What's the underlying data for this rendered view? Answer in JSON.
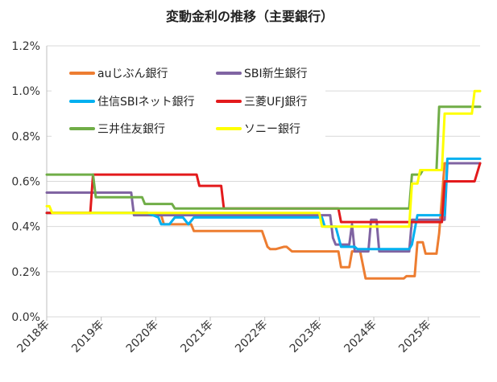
{
  "chart_data": {
    "type": "line",
    "title": "変動金利の推移（主要銀行）",
    "xlabel": "",
    "ylabel": "",
    "x_ticks": [
      "2018年",
      "2019年",
      "2020年",
      "2021年",
      "2022年",
      "2023年",
      "2024年",
      "2025年"
    ],
    "xlim": [
      2018.0,
      2025.95
    ],
    "ylim": [
      0.0,
      1.2
    ],
    "y_ticks": [
      "0.0%",
      "0.2%",
      "0.4%",
      "0.6%",
      "0.8%",
      "1.0%",
      "1.2%"
    ],
    "y_tick_values": [
      0.0,
      0.2,
      0.4,
      0.6,
      0.8,
      1.0,
      1.2
    ],
    "grid": "horizontal",
    "legend_placement": "top-left",
    "series": [
      {
        "name": "auじぶん銀行",
        "color": "#ED7D31",
        "x": [
          2018.0,
          2019.85,
          2019.9,
          2020.1,
          2020.15,
          2020.3,
          2020.6,
          2020.65,
          2020.7,
          2021.95,
          2022.05,
          2022.1,
          2022.2,
          2022.35,
          2022.4,
          2022.5,
          2022.6,
          2022.65,
          2023.35,
          2023.4,
          2023.55,
          2023.6,
          2023.7,
          2023.75,
          2023.85,
          2023.9,
          2024.55,
          2024.6,
          2024.75,
          2024.8,
          2024.9,
          2024.95,
          2025.15,
          2025.2,
          2025.3,
          2025.95
        ],
        "values": [
          0.46,
          0.46,
          0.45,
          0.45,
          0.41,
          0.41,
          0.41,
          0.41,
          0.38,
          0.38,
          0.31,
          0.3,
          0.3,
          0.31,
          0.31,
          0.29,
          0.29,
          0.29,
          0.29,
          0.22,
          0.22,
          0.29,
          0.29,
          0.29,
          0.17,
          0.17,
          0.17,
          0.18,
          0.18,
          0.33,
          0.33,
          0.28,
          0.28,
          0.37,
          0.68,
          0.68
        ]
      },
      {
        "name": "SBI新生銀行",
        "color": "#8064A2",
        "x": [
          2018.0,
          2019.55,
          2019.6,
          2021.05,
          2021.1,
          2023.2,
          2023.25,
          2023.3,
          2023.55,
          2023.6,
          2023.65,
          2023.9,
          2023.95,
          2024.05,
          2024.1,
          2024.65,
          2024.7,
          2024.8,
          2024.85,
          2025.3,
          2025.35,
          2025.95
        ],
        "values": [
          0.55,
          0.55,
          0.45,
          0.45,
          0.45,
          0.45,
          0.35,
          0.32,
          0.32,
          0.41,
          0.29,
          0.29,
          0.43,
          0.43,
          0.29,
          0.29,
          0.43,
          0.43,
          0.43,
          0.43,
          0.68,
          0.68
        ]
      },
      {
        "name": "住信SBIネット銀行",
        "color": "#00B0F0",
        "x": [
          2018.0,
          2019.85,
          2020.05,
          2020.1,
          2020.25,
          2020.35,
          2020.5,
          2020.6,
          2020.7,
          2023.05,
          2023.1,
          2023.3,
          2023.4,
          2023.65,
          2023.7,
          2024.65,
          2024.7,
          2024.8,
          2024.95,
          2025.0,
          2025.3,
          2025.35,
          2025.95
        ],
        "values": [
          0.46,
          0.46,
          0.44,
          0.41,
          0.41,
          0.44,
          0.44,
          0.41,
          0.44,
          0.44,
          0.4,
          0.4,
          0.31,
          0.31,
          0.3,
          0.3,
          0.32,
          0.45,
          0.45,
          0.45,
          0.45,
          0.7,
          0.7
        ]
      },
      {
        "name": "三菱UFJ銀行",
        "color": "#E31A1C",
        "x": [
          2018.0,
          2018.8,
          2018.85,
          2020.75,
          2020.8,
          2021.2,
          2021.25,
          2023.35,
          2023.4,
          2024.95,
          2025.0,
          2025.25,
          2025.3,
          2025.85,
          2025.95
        ],
        "values": [
          0.46,
          0.46,
          0.63,
          0.63,
          0.58,
          0.58,
          0.48,
          0.48,
          0.42,
          0.42,
          0.42,
          0.42,
          0.6,
          0.6,
          0.68
        ]
      },
      {
        "name": "三井住友銀行",
        "color": "#70AD47",
        "x": [
          2018.0,
          2018.85,
          2018.9,
          2019.55,
          2019.6,
          2019.75,
          2019.8,
          2020.3,
          2020.35,
          2024.65,
          2024.7,
          2024.85,
          2024.9,
          2025.15,
          2025.2,
          2025.95
        ],
        "values": [
          0.63,
          0.63,
          0.53,
          0.53,
          0.53,
          0.53,
          0.5,
          0.5,
          0.48,
          0.48,
          0.63,
          0.63,
          0.65,
          0.65,
          0.93,
          0.93
        ]
      },
      {
        "name": "ソニー銀行",
        "color": "#FFFF00",
        "x": [
          2018.0,
          2018.05,
          2018.1,
          2023.0,
          2023.05,
          2024.65,
          2024.7,
          2024.8,
          2024.85,
          2025.25,
          2025.3,
          2025.8,
          2025.85,
          2025.95
        ],
        "values": [
          0.49,
          0.49,
          0.46,
          0.46,
          0.4,
          0.4,
          0.59,
          0.59,
          0.65,
          0.65,
          0.9,
          0.9,
          1.0,
          1.0
        ]
      }
    ]
  }
}
